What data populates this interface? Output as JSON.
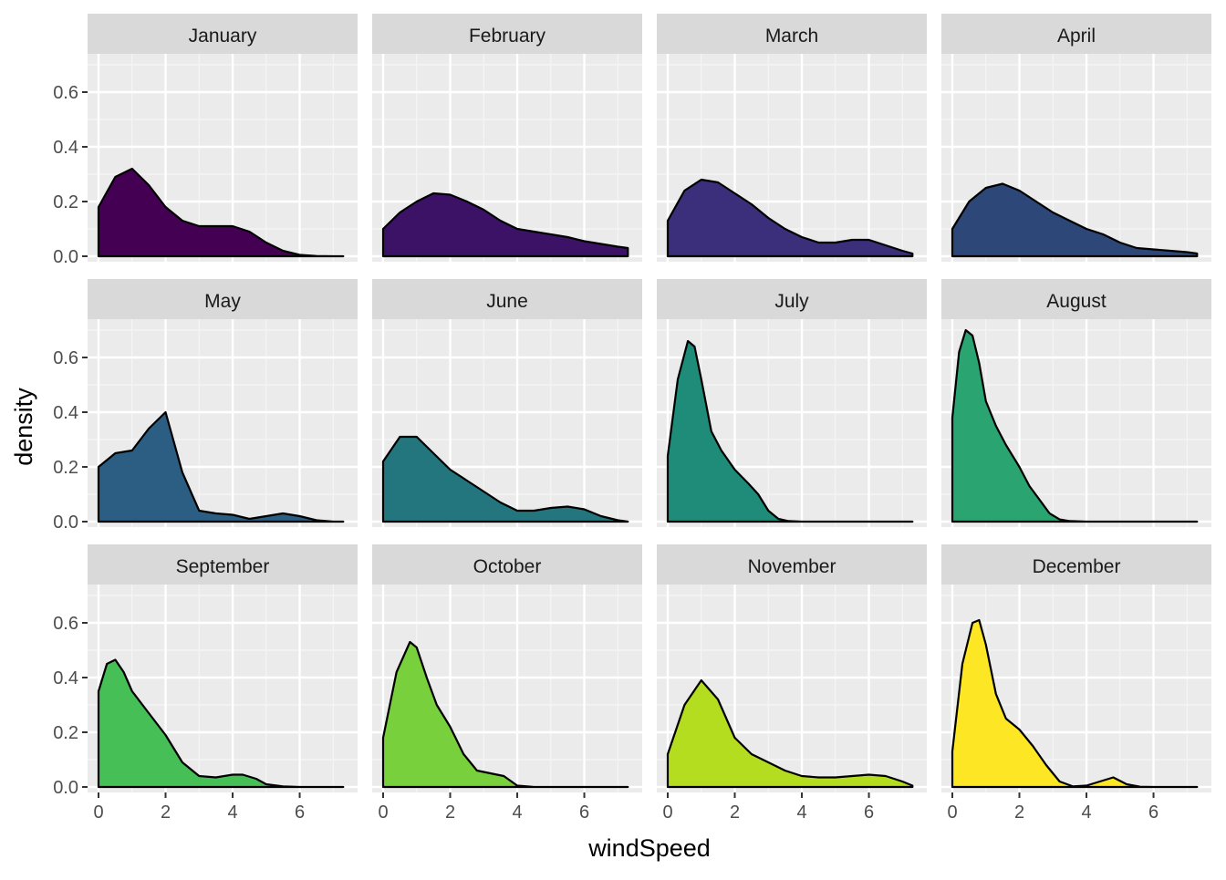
{
  "chart_data": {
    "type": "area",
    "subtype": "faceted-density",
    "xlabel": "windSpeed",
    "ylabel": "density",
    "xlim": [
      0,
      7.4
    ],
    "ylim": [
      0,
      0.7
    ],
    "xticks": [
      0,
      2,
      4,
      6
    ],
    "xtick_labels": [
      "0",
      "2",
      "4",
      "6"
    ],
    "yticks": [
      0,
      0.2,
      0.4,
      0.6
    ],
    "ytick_labels": [
      "0.0",
      "0.2",
      "0.4",
      "0.6"
    ],
    "grid": true,
    "legend": "none",
    "facets": [
      {
        "name": "January",
        "color": "#440154",
        "x": [
          0,
          0.5,
          1,
          1.5,
          2,
          2.5,
          3,
          3.5,
          4,
          4.5,
          5,
          5.5,
          6,
          6.5,
          7,
          7.3
        ],
        "y": [
          0.18,
          0.29,
          0.32,
          0.26,
          0.18,
          0.13,
          0.11,
          0.11,
          0.11,
          0.09,
          0.05,
          0.02,
          0.005,
          0.001,
          0,
          0
        ]
      },
      {
        "name": "February",
        "color": "#3b1266",
        "x": [
          0,
          0.5,
          1,
          1.5,
          2,
          2.5,
          3,
          3.5,
          4,
          4.5,
          5,
          5.5,
          6,
          6.5,
          7,
          7.3
        ],
        "y": [
          0.1,
          0.16,
          0.2,
          0.23,
          0.225,
          0.2,
          0.17,
          0.13,
          0.1,
          0.09,
          0.08,
          0.07,
          0.055,
          0.045,
          0.035,
          0.03
        ]
      },
      {
        "name": "March",
        "color": "#3b2e7a",
        "x": [
          0,
          0.5,
          1,
          1.5,
          2,
          2.5,
          3,
          3.5,
          4,
          4.5,
          5,
          5.5,
          6,
          6.5,
          7,
          7.3
        ],
        "y": [
          0.13,
          0.24,
          0.28,
          0.27,
          0.23,
          0.19,
          0.14,
          0.1,
          0.07,
          0.05,
          0.05,
          0.06,
          0.06,
          0.04,
          0.02,
          0.01
        ]
      },
      {
        "name": "April",
        "color": "#2d4878",
        "x": [
          0,
          0.5,
          1,
          1.5,
          2,
          2.5,
          3,
          3.5,
          4,
          4.5,
          5,
          5.5,
          6,
          6.5,
          7,
          7.3
        ],
        "y": [
          0.1,
          0.2,
          0.25,
          0.265,
          0.24,
          0.2,
          0.16,
          0.13,
          0.1,
          0.08,
          0.05,
          0.03,
          0.025,
          0.02,
          0.015,
          0.01
        ]
      },
      {
        "name": "May",
        "color": "#2b5e82",
        "x": [
          0,
          0.5,
          1,
          1.5,
          2,
          2.5,
          3,
          3.5,
          4,
          4.5,
          5,
          5.5,
          6,
          6.5,
          7,
          7.3
        ],
        "y": [
          0.2,
          0.25,
          0.26,
          0.34,
          0.4,
          0.18,
          0.04,
          0.03,
          0.025,
          0.01,
          0.02,
          0.03,
          0.02,
          0.005,
          0,
          0
        ]
      },
      {
        "name": "June",
        "color": "#23767d",
        "x": [
          0,
          0.5,
          1,
          1.5,
          2,
          2.5,
          3,
          3.5,
          4,
          4.5,
          5,
          5.5,
          6,
          6.5,
          7,
          7.3
        ],
        "y": [
          0.22,
          0.31,
          0.31,
          0.25,
          0.19,
          0.15,
          0.11,
          0.07,
          0.04,
          0.04,
          0.05,
          0.055,
          0.045,
          0.02,
          0.005,
          0
        ]
      },
      {
        "name": "July",
        "color": "#1f8c7a",
        "x": [
          0,
          0.3,
          0.6,
          0.8,
          1.0,
          1.3,
          1.6,
          2.0,
          2.4,
          2.7,
          3.0,
          3.3,
          3.6,
          4.0,
          5.0,
          6.0,
          7.3
        ],
        "y": [
          0.24,
          0.52,
          0.66,
          0.64,
          0.52,
          0.33,
          0.26,
          0.19,
          0.14,
          0.1,
          0.04,
          0.01,
          0.002,
          0,
          0,
          0,
          0
        ]
      },
      {
        "name": "August",
        "color": "#2aa470",
        "x": [
          0,
          0.2,
          0.4,
          0.6,
          0.8,
          1.0,
          1.3,
          1.6,
          2.0,
          2.3,
          2.6,
          2.9,
          3.2,
          3.5,
          4.0,
          5.0,
          6.0,
          7.3
        ],
        "y": [
          0.38,
          0.62,
          0.7,
          0.68,
          0.58,
          0.44,
          0.35,
          0.28,
          0.2,
          0.13,
          0.08,
          0.03,
          0.008,
          0.002,
          0,
          0,
          0,
          0
        ]
      },
      {
        "name": "September",
        "color": "#47bf57",
        "x": [
          0,
          0.25,
          0.5,
          0.75,
          1.0,
          1.5,
          2.0,
          2.5,
          3.0,
          3.5,
          4.0,
          4.3,
          4.7,
          5.0,
          5.5,
          6.0,
          7.3
        ],
        "y": [
          0.35,
          0.45,
          0.465,
          0.42,
          0.35,
          0.27,
          0.19,
          0.09,
          0.04,
          0.035,
          0.045,
          0.045,
          0.03,
          0.01,
          0.002,
          0,
          0
        ]
      },
      {
        "name": "October",
        "color": "#78d03c",
        "x": [
          0,
          0.4,
          0.8,
          1.0,
          1.3,
          1.6,
          2.0,
          2.4,
          2.8,
          3.2,
          3.6,
          4.0,
          4.5,
          5.0,
          6.0,
          7.3
        ],
        "y": [
          0.18,
          0.42,
          0.53,
          0.51,
          0.4,
          0.3,
          0.22,
          0.12,
          0.06,
          0.05,
          0.04,
          0.005,
          0,
          0,
          0,
          0
        ]
      },
      {
        "name": "November",
        "color": "#b5dd1f",
        "x": [
          0,
          0.5,
          1,
          1.5,
          2,
          2.5,
          3,
          3.5,
          4,
          4.5,
          5,
          5.5,
          6,
          6.5,
          7,
          7.3
        ],
        "y": [
          0.12,
          0.3,
          0.39,
          0.32,
          0.18,
          0.12,
          0.09,
          0.06,
          0.04,
          0.035,
          0.035,
          0.04,
          0.045,
          0.04,
          0.02,
          0.005
        ]
      },
      {
        "name": "December",
        "color": "#fde725",
        "x": [
          0,
          0.3,
          0.6,
          0.8,
          1.0,
          1.3,
          1.6,
          2.0,
          2.4,
          2.8,
          3.2,
          3.6,
          4.0,
          4.4,
          4.8,
          5.2,
          5.6,
          6.0,
          7.3
        ],
        "y": [
          0.13,
          0.45,
          0.6,
          0.61,
          0.52,
          0.34,
          0.25,
          0.21,
          0.15,
          0.08,
          0.02,
          0.002,
          0.005,
          0.02,
          0.035,
          0.01,
          0.001,
          0,
          0
        ]
      }
    ]
  }
}
